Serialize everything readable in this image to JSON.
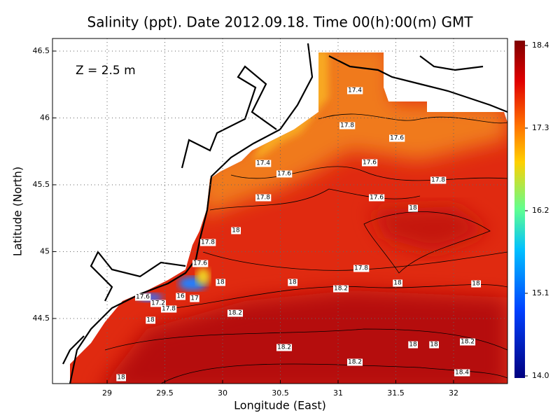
{
  "title": "Salinity (ppt). Date 2012.09.18. Time 00(h):00(m) GMT",
  "annotation": "Z = 2.5 m",
  "x_label": "Longitude (East)",
  "y_label": "Latitude (North)",
  "xlim": [
    28.527,
    32.467
  ],
  "ylim": [
    44.013,
    46.594
  ],
  "xticks": [
    29,
    29.5,
    30,
    30.5,
    31,
    31.5,
    32
  ],
  "yticks": [
    44.5,
    45,
    45.5,
    46,
    46.5
  ],
  "grid": true,
  "colorbar": {
    "lim": [
      14,
      18.4
    ],
    "ticks": [
      {
        "value": 14,
        "label": "14.0"
      },
      15.1,
      16.2,
      17.3,
      18.4
    ]
  },
  "contour_labels": [
    17.4,
    17.8,
    17.6,
    17.4,
    17.6,
    17.6,
    17.8,
    17.8,
    17.6,
    18,
    18,
    17.8,
    17.6,
    17.8,
    18,
    18,
    18,
    18,
    18.2,
    17.6,
    16,
    17,
    17.2,
    17.8,
    18.2,
    18,
    18.2,
    18,
    18,
    18.2,
    18.2,
    18.4,
    18
  ]
}
